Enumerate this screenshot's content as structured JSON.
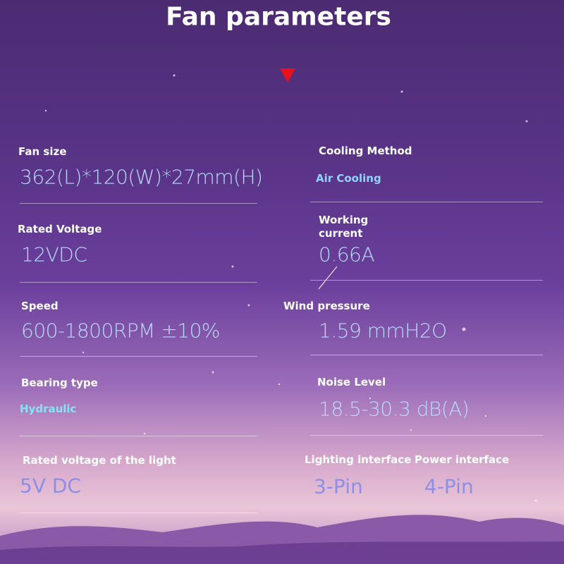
{
  "header": {
    "title": "Fan parameters"
  },
  "specs": [
    {
      "label": "Fan size",
      "value": "362(L)*120(W)*27mm(H)"
    },
    {
      "label": "Cooling Method",
      "value": "Air Cooling"
    },
    {
      "label": "Rated Voltage",
      "value": "12VDC"
    },
    {
      "label": "Working current",
      "value": "0.66A"
    },
    {
      "label": "Speed",
      "value": "600-1800RPM ±10%"
    },
    {
      "label": "Wind pressure",
      "value": "1.59 mmH2O"
    },
    {
      "label": "Bearing type",
      "value": "Hydraulic"
    },
    {
      "label": "Noise Level",
      "value": "18.5-30.3 dB(A)"
    },
    {
      "label": "Rated voltage of the light",
      "value": "5V DC"
    },
    {
      "label": "Lighting interface",
      "value": "3-Pin"
    },
    {
      "label": "Power interface",
      "value": "4-Pin"
    }
  ]
}
